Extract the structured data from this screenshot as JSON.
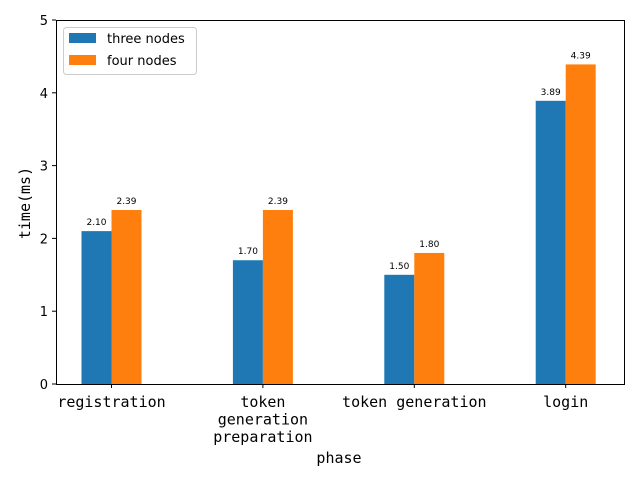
{
  "chart_data": {
    "type": "bar",
    "categories": [
      [
        "registration"
      ],
      [
        "token",
        "generation",
        "preparation"
      ],
      [
        "token generation"
      ],
      [
        "login"
      ]
    ],
    "series": [
      {
        "name": "three nodes",
        "color": "#1f77b4",
        "values": [
          2.1,
          1.7,
          1.5,
          3.89
        ],
        "labels": [
          "2.10",
          "1.70",
          "1.50",
          "3.89"
        ]
      },
      {
        "name": "four nodes",
        "color": "#ff7f0e",
        "values": [
          2.39,
          2.39,
          1.8,
          4.39
        ],
        "labels": [
          "2.39",
          "2.39",
          "1.80",
          "4.39"
        ]
      }
    ],
    "xlabel": "phase",
    "ylabel": "time(ms)",
    "ylim": [
      0,
      5
    ],
    "yticks": [
      "0",
      "1",
      "2",
      "3",
      "4",
      "5"
    ],
    "grid": false,
    "legend_position": "top-left"
  }
}
